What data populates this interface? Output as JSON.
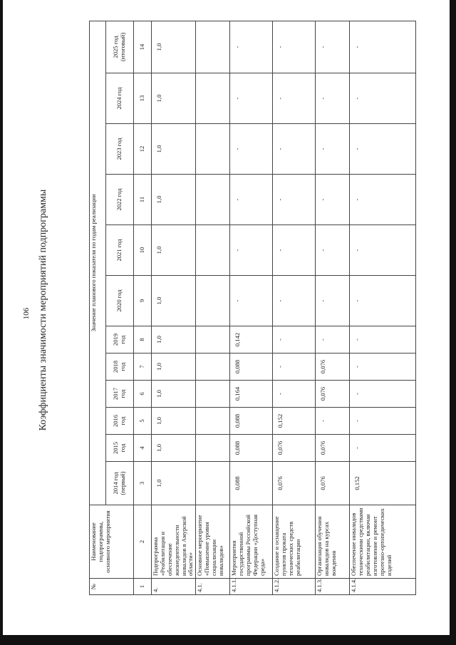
{
  "page_number": "106",
  "title": "Коэффициенты значимости мероприятий подпрограммы",
  "table": {
    "col_no": "№",
    "col_name": "Наименование подпрограммы, основного мероприятия",
    "group_header": "Значение планового показателя по годам реализации",
    "years": [
      "2014 год (первый)",
      "2015 год",
      "2016 год",
      "2017 год",
      "2018 год",
      "2019 год",
      "2020 год",
      "2021 год",
      "2022 год",
      "2023 год",
      "2024 год",
      "2025 год (итоговый)"
    ],
    "index_row": [
      "1",
      "2",
      "3",
      "4",
      "5",
      "6",
      "7",
      "8",
      "9",
      "10",
      "11",
      "12",
      "13",
      "14"
    ],
    "rows": [
      {
        "no": "4.",
        "name": "Подпрограмма «Реабилитация и обеспечение жизнедеятельности инвалидов в Амурской области»",
        "values": [
          "1,0",
          "1,0",
          "1,0",
          "1,0",
          "1,0",
          "1,0",
          "1,0",
          "1,0",
          "1,0",
          "1,0",
          "1,0",
          "1,0"
        ]
      },
      {
        "no": "4.1.",
        "name": "Основное мероприятие «Повышение уровня социализации инвалидов»",
        "values": [
          "",
          "",
          "",
          "",
          "",
          "",
          "",
          "",
          "",
          "",
          "",
          ""
        ]
      },
      {
        "no": "4.1.1.",
        "name": "Мероприятия государственной программы Российской Федерации «Доступная среда»",
        "values": [
          "0,088",
          "0,088",
          "0,088",
          "0,164",
          "0,088",
          "0,142",
          "-",
          "-",
          "-",
          "-",
          "-",
          "-"
        ]
      },
      {
        "no": "4.1.2.",
        "name": "Создание и оснащение пунктов проката технических средств реабилитации",
        "values": [
          "0,076",
          "0,076",
          "0,152",
          "-",
          "-",
          "-",
          "-",
          "-",
          "-",
          "-",
          "-",
          "-"
        ]
      },
      {
        "no": "4.1.3.",
        "name": "Организация обучения инвалидов на курсах вождения",
        "values": [
          "0,076",
          "0,076",
          "-",
          "0,076",
          "0,076",
          "-",
          "-",
          "-",
          "-",
          "-",
          "-",
          "-"
        ]
      },
      {
        "no": "4.1.4.",
        "name": "Обеспечение инвалидов техническими средствами реабилитации, включая изготовление и ремонт протезно-ортопедических изделий",
        "values": [
          "0,152",
          "-",
          "-",
          "-",
          "-",
          "-",
          "-",
          "-",
          "-",
          "-",
          "-",
          "-"
        ]
      }
    ]
  }
}
